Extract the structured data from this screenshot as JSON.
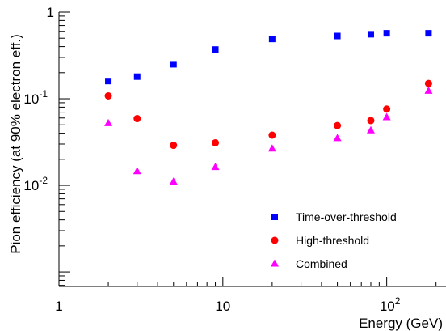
{
  "chart_data": {
    "type": "scatter",
    "xlabel": "Energy (GeV)",
    "ylabel": "Pion efficiency (at 90% electron eff.)",
    "xscale": "log",
    "yscale": "log",
    "xlim": [
      1,
      230
    ],
    "ylim": [
      0.00068,
      1
    ],
    "grid": false,
    "legend_position": "bottom-right",
    "x_ticks": [
      {
        "value": 1,
        "mantissa": "1",
        "exp": ""
      },
      {
        "value": 10,
        "mantissa": "10",
        "exp": ""
      },
      {
        "value": 100,
        "mantissa": "10",
        "exp": "2"
      }
    ],
    "y_ticks": [
      {
        "value": 1,
        "mantissa": "1",
        "exp": ""
      },
      {
        "value": 0.1,
        "mantissa": "10",
        "exp": "-1"
      },
      {
        "value": 0.01,
        "mantissa": "10",
        "exp": "-2"
      }
    ],
    "series": [
      {
        "name": "Time-over-threshold",
        "marker": "square",
        "color": "#0000ff",
        "x": [
          2,
          3,
          5,
          9,
          20,
          50,
          80,
          100,
          180
        ],
        "y": [
          0.16,
          0.18,
          0.25,
          0.37,
          0.49,
          0.53,
          0.555,
          0.57,
          0.57
        ]
      },
      {
        "name": "High-threshold",
        "marker": "circle",
        "color": "#ff0000",
        "x": [
          2,
          3,
          5,
          9,
          20,
          50,
          80,
          100,
          180
        ],
        "y": [
          0.108,
          0.059,
          0.029,
          0.031,
          0.038,
          0.049,
          0.056,
          0.076,
          0.15
        ]
      },
      {
        "name": "Combined",
        "marker": "triangle",
        "color": "#ff00ff",
        "x": [
          2,
          3,
          5,
          9,
          20,
          50,
          80,
          100,
          180
        ],
        "y": [
          0.052,
          0.0145,
          0.011,
          0.0162,
          0.0265,
          0.035,
          0.043,
          0.061,
          0.123
        ]
      }
    ]
  }
}
